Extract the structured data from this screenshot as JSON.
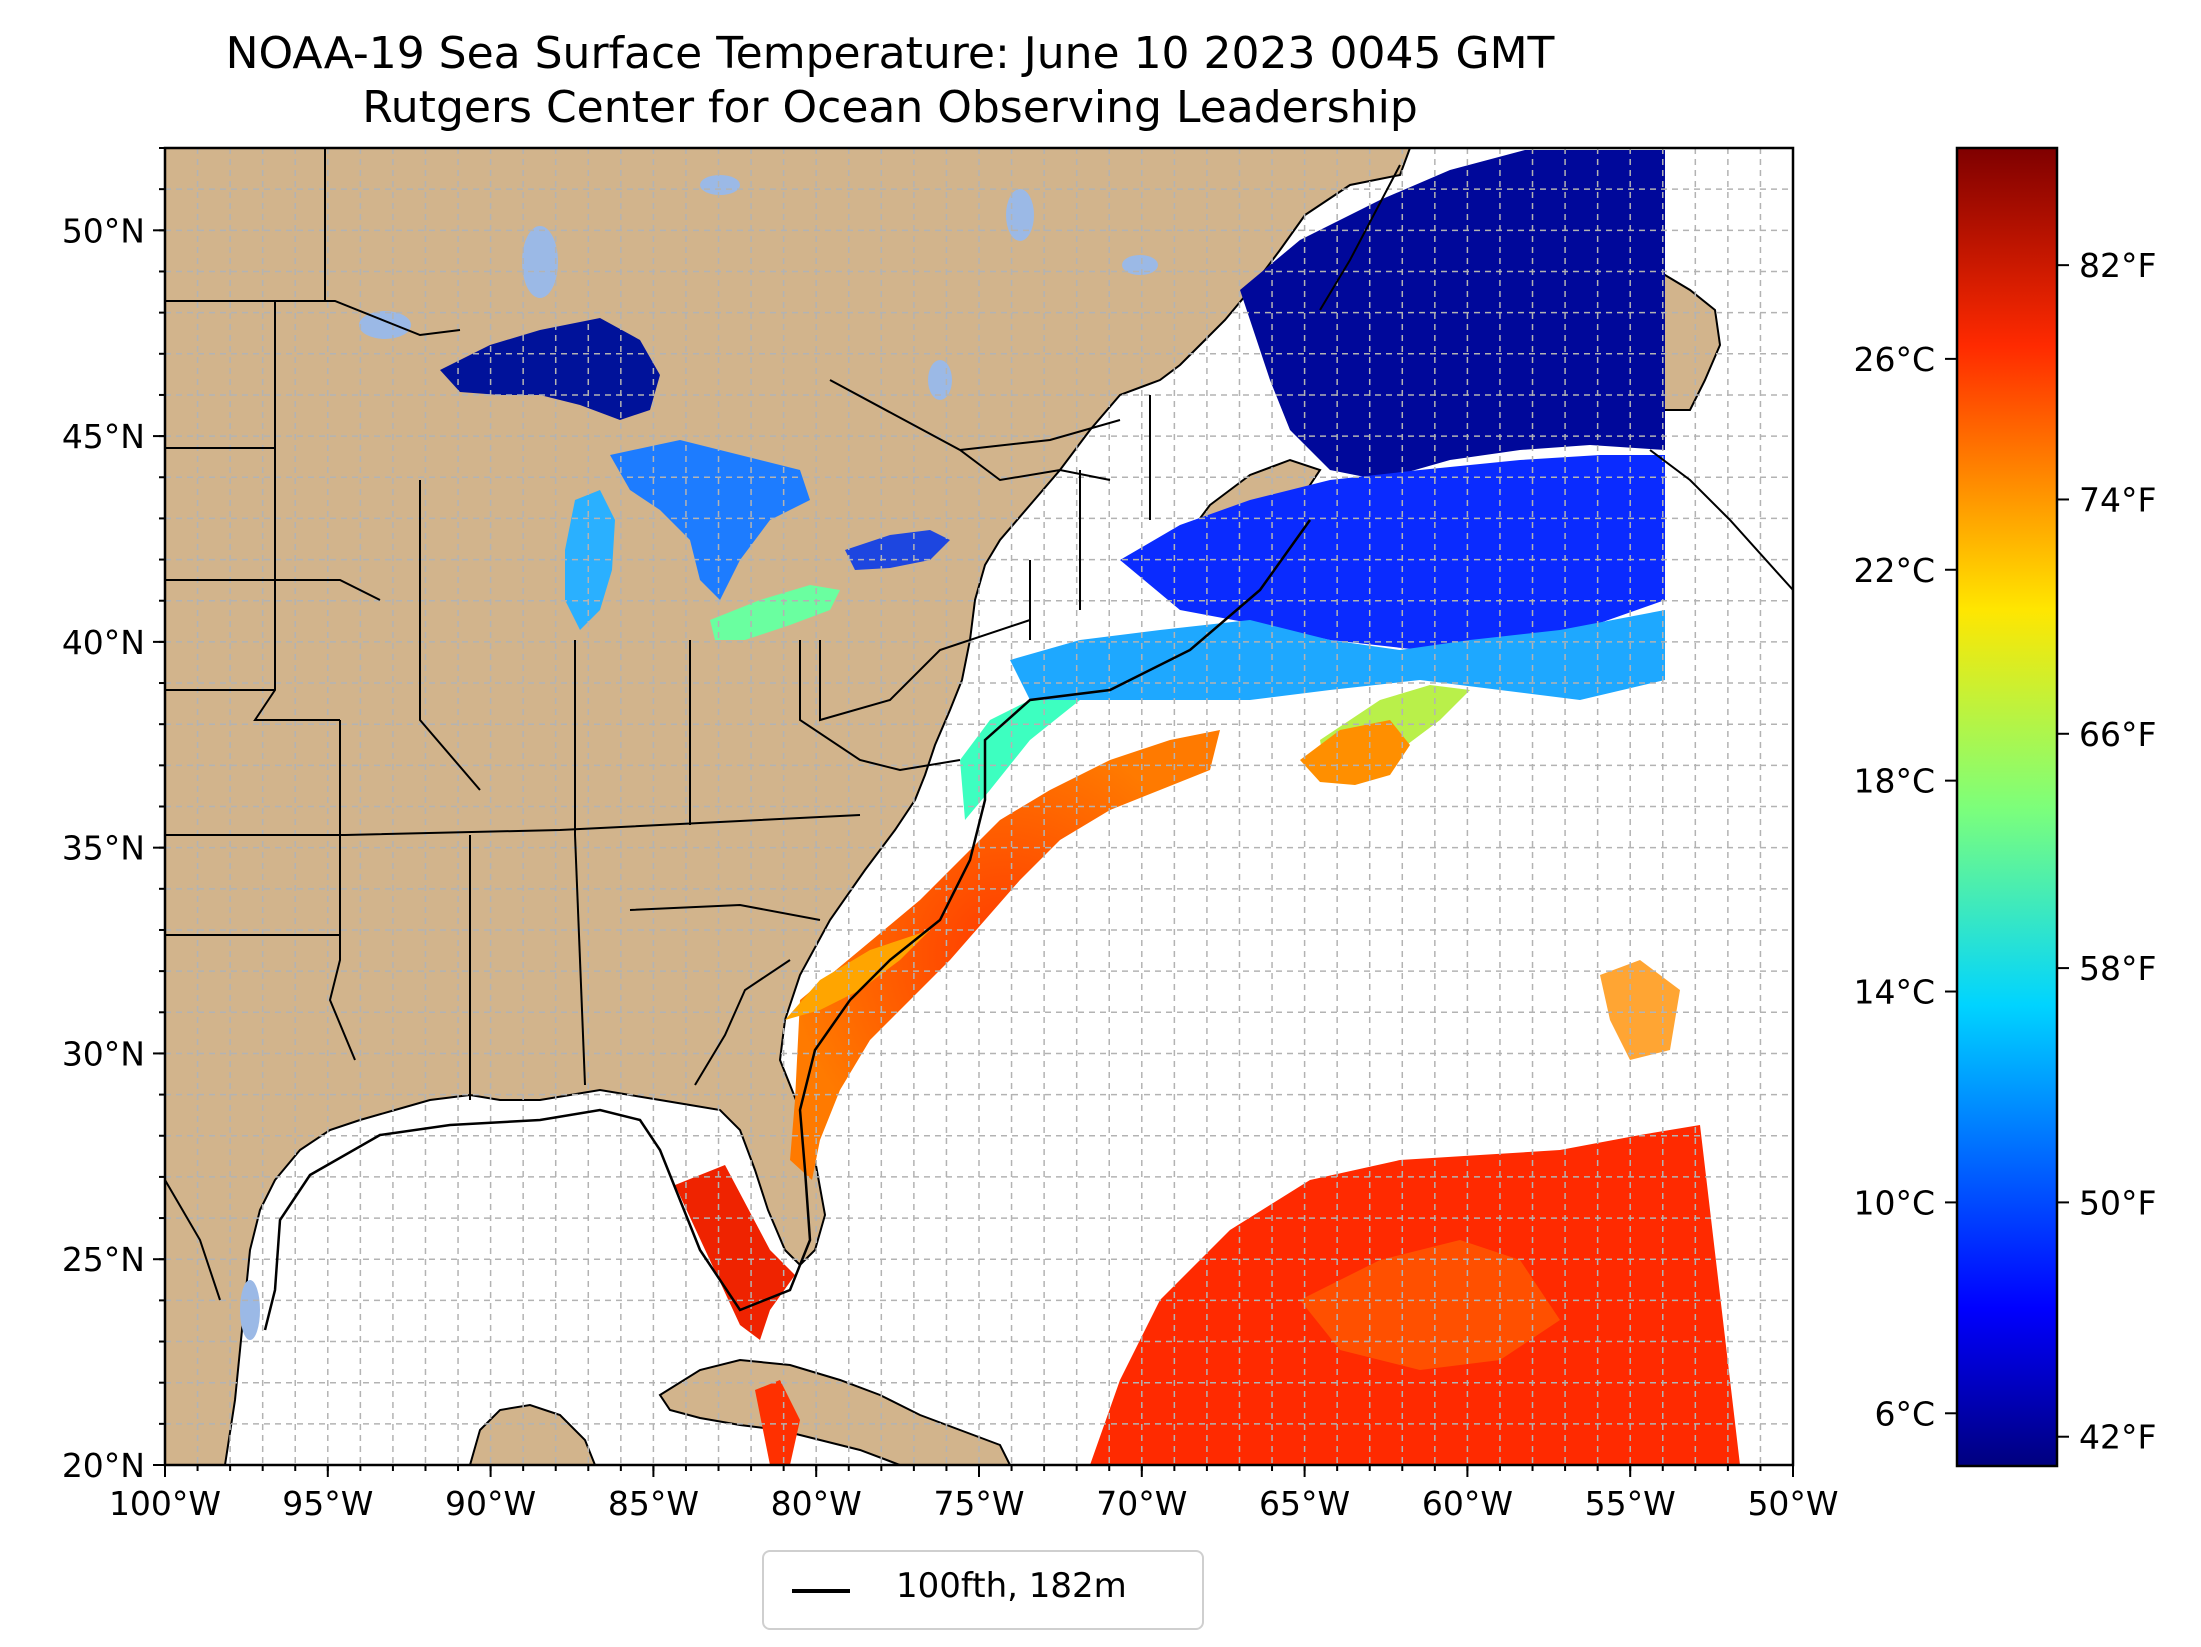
{
  "title": "NOAA-19 Sea Surface Temperature: June 10 2023 0045 GMT",
  "subtitle": "Rutgers Center for Ocean Observing Leadership",
  "map": {
    "lon_range": [
      -100,
      -50
    ],
    "lat_range": [
      20,
      52
    ],
    "lon_ticks": [
      "100°W",
      "95°W",
      "90°W",
      "85°W",
      "80°W",
      "75°W",
      "70°W",
      "65°W",
      "60°W",
      "55°W",
      "50°W"
    ],
    "lat_ticks": [
      "20°N",
      "25°N",
      "30°N",
      "35°N",
      "40°N",
      "45°N",
      "50°N"
    ],
    "gridlines": true,
    "land_color": "#d2b48c",
    "lake_color": "#9bb9e6",
    "ocean_nodata_color": "#ffffff"
  },
  "legend": {
    "label": "100fth, 182m",
    "placement": "bottom-center"
  },
  "colorbar": {
    "colormap": "jet",
    "celsius_ticks": [
      "6°C",
      "10°C",
      "14°C",
      "18°C",
      "22°C",
      "26°C"
    ],
    "fahrenheit_ticks": [
      "42°F",
      "50°F",
      "58°F",
      "66°F",
      "74°F",
      "82°F"
    ]
  }
}
